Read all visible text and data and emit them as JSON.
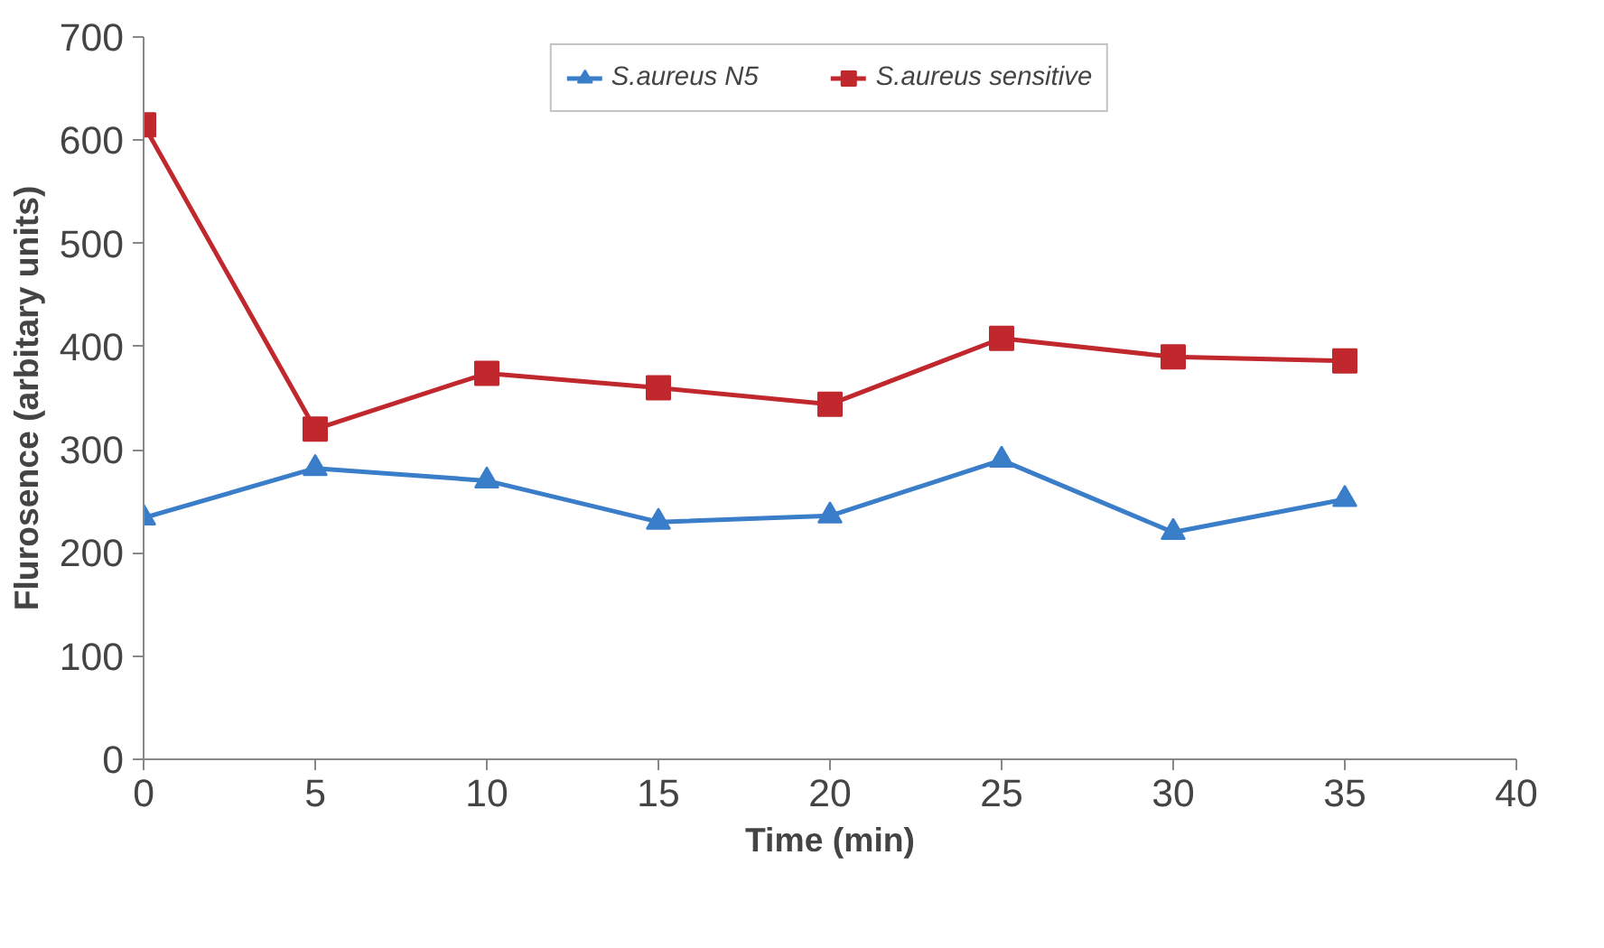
{
  "chart_data": {
    "type": "line",
    "xlabel": "Time (min)",
    "ylabel": "Flurosence (arbitary units)",
    "x": [
      0,
      5,
      10,
      15,
      20,
      25,
      30,
      35
    ],
    "series": [
      {
        "name": "S.aureus N5",
        "color": "#3a7dc9",
        "marker": "triangle",
        "values": [
          234,
          282,
          270,
          230,
          236,
          290,
          220,
          252
        ]
      },
      {
        "name": "S.aureus sensitive",
        "color": "#c0282d",
        "marker": "square",
        "values": [
          615,
          320,
          374,
          360,
          344,
          408,
          390,
          386
        ]
      }
    ],
    "xlim": [
      0,
      40
    ],
    "xticks": [
      0,
      5,
      10,
      15,
      20,
      25,
      30,
      35,
      40
    ],
    "ylim": [
      0,
      700
    ],
    "yticks": [
      0,
      100,
      200,
      300,
      400,
      500,
      600,
      700
    ],
    "grid": false,
    "legend": "top",
    "line_style": "solid"
  }
}
